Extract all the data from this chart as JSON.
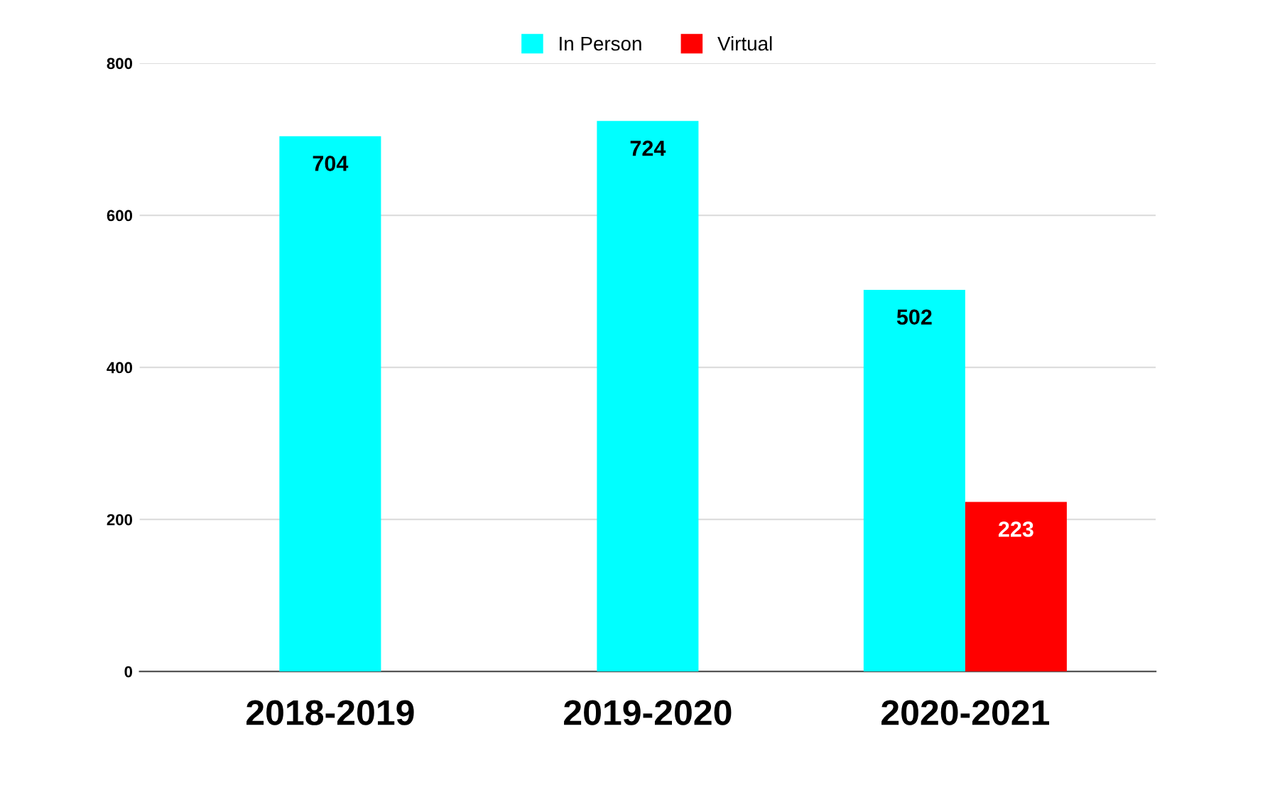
{
  "chart_data": {
    "type": "bar",
    "categories": [
      "2018-2019",
      "2019-2020",
      "2020-2021"
    ],
    "series": [
      {
        "name": "In Person",
        "color": "#00ffff",
        "values": [
          704,
          724,
          502
        ]
      },
      {
        "name": "Virtual",
        "color": "#ff0000",
        "values": [
          null,
          null,
          223
        ]
      }
    ],
    "ylim": [
      0,
      800
    ],
    "yticks": [
      0,
      200,
      400,
      600,
      800
    ],
    "grid": "y",
    "legend": "top",
    "data_labels": true
  }
}
